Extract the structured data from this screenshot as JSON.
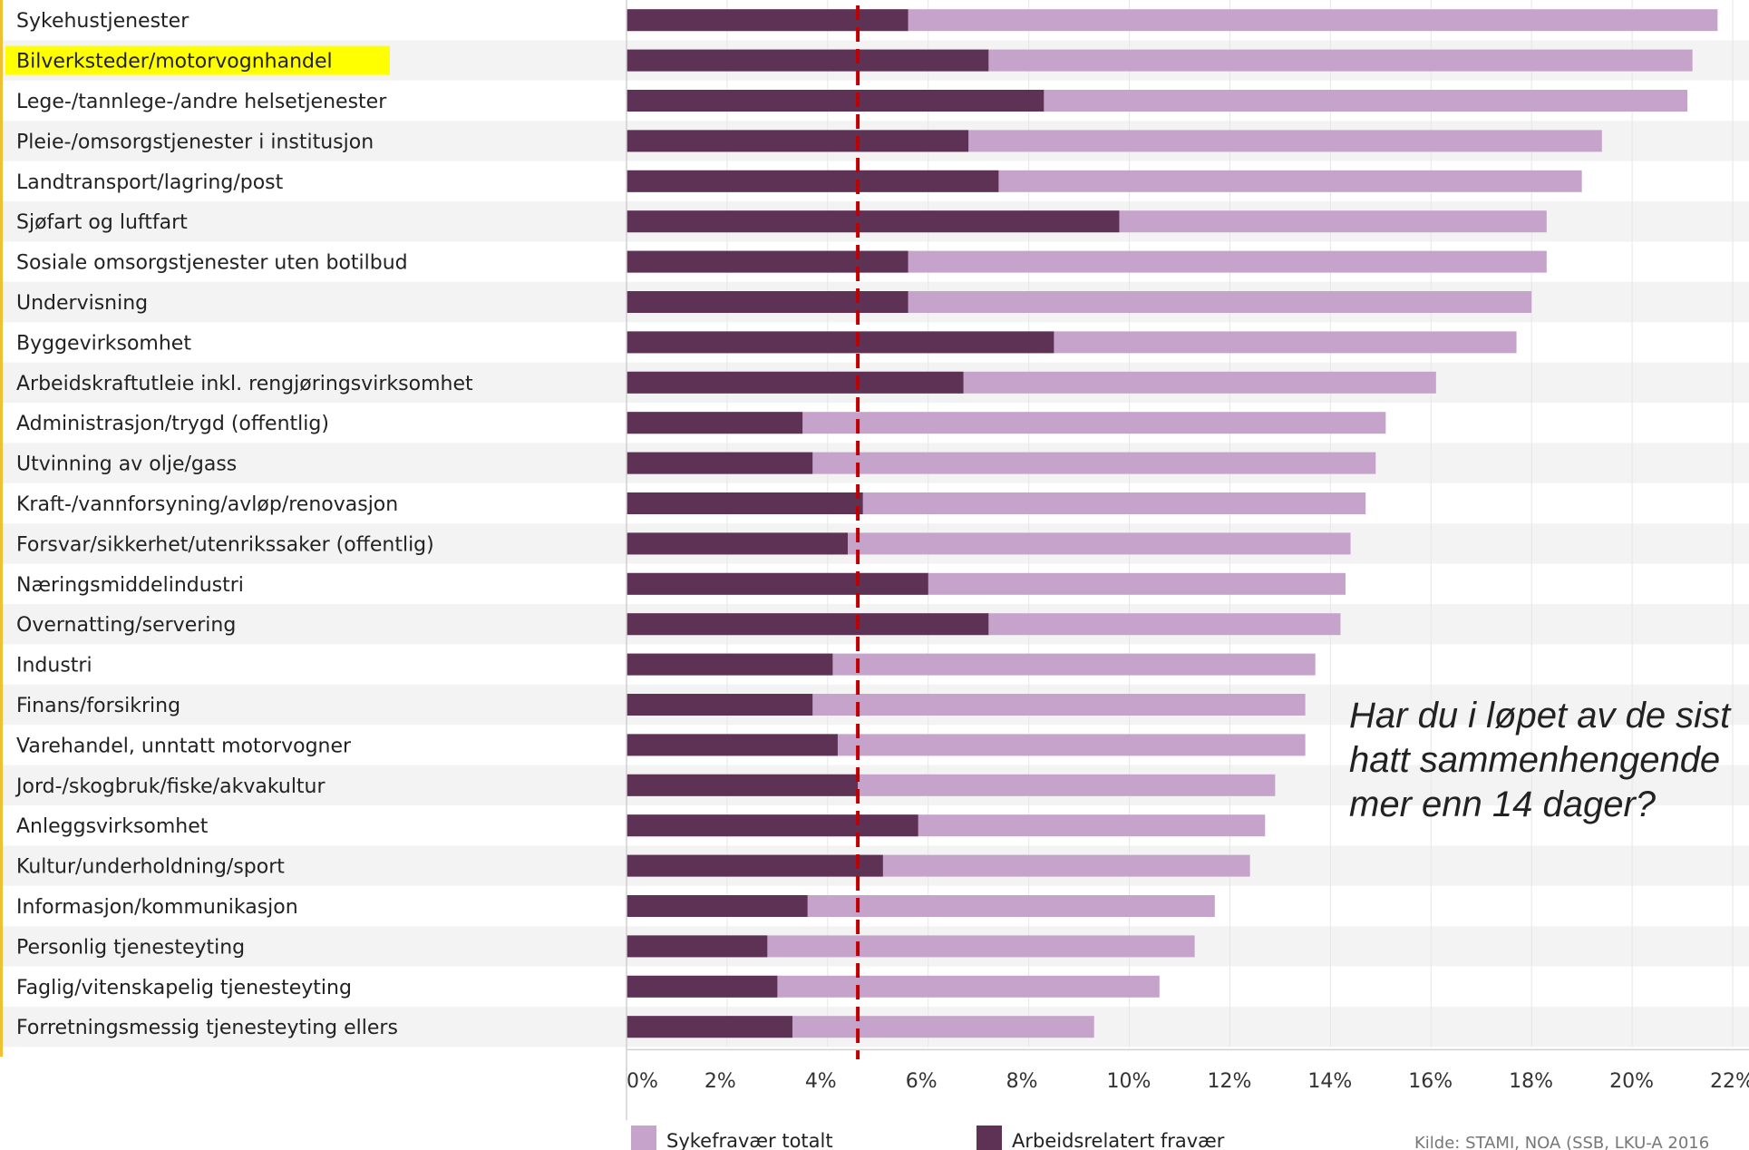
{
  "chart_data": {
    "type": "bar",
    "orientation": "horizontal",
    "stacking": "overlay",
    "categories": [
      "Sykehustjenester",
      "Bilverksteder/motorvognhandel",
      "Lege-/tannlege-/andre helsetjenester",
      "Pleie-/omsorgstjenester i institusjon",
      "Landtransport/lagring/post",
      "Sjøfart og luftfart",
      "Sosiale omsorgstjenester uten botilbud",
      "Undervisning",
      "Byggevirksomhet",
      "Arbeidskraftutleie inkl. rengjøringsvirksomhet",
      "Administrasjon/trygd (offentlig)",
      "Utvinning av olje/gass",
      "Kraft-/vannforsyning/avløp/renovasjon",
      "Forsvar/sikkerhet/utenrikssaker (offentlig)",
      "Næringsmiddelindustri",
      "Overnatting/servering",
      "Industri",
      "Finans/forsikring",
      "Varehandel, unntatt motorvogner",
      "Jord-/skogbruk/fiske/akvakultur",
      "Anleggsvirksomhet",
      "Kultur/underholdning/sport",
      "Informasjon/kommunikasjon",
      "Personlig tjenesteyting",
      "Faglig/vitenskapelig tjenesteyting",
      "Forretningsmessig tjenesteyting ellers"
    ],
    "highlighted_category": "Bilverksteder/motorvognhandel",
    "highlight_color": "#ffff00",
    "series": [
      {
        "name": "Sykefravær totalt",
        "color": "#c5a3cb",
        "values": [
          21.7,
          21.2,
          21.1,
          19.4,
          19.0,
          18.3,
          18.3,
          18.0,
          17.7,
          16.1,
          15.1,
          14.9,
          14.7,
          14.4,
          14.3,
          14.2,
          13.7,
          13.5,
          13.5,
          12.9,
          12.7,
          12.4,
          11.7,
          11.3,
          10.6,
          9.3
        ]
      },
      {
        "name": "Arbeidsrelatert fravær",
        "color": "#5e3254",
        "values": [
          5.6,
          7.2,
          8.3,
          6.8,
          7.4,
          9.8,
          5.6,
          5.6,
          8.5,
          6.7,
          3.5,
          3.7,
          4.7,
          4.4,
          6.0,
          7.2,
          4.1,
          3.7,
          4.2,
          4.6,
          5.8,
          5.1,
          3.6,
          2.8,
          3.0,
          3.3
        ]
      }
    ],
    "reference_line": {
      "value": 4.6,
      "color": "#c00000",
      "style": "dashed"
    },
    "xlim": [
      0,
      22
    ],
    "xticks": [
      "0%",
      "2%",
      "4%",
      "6%",
      "8%",
      "10%",
      "12%",
      "14%",
      "16%",
      "18%",
      "20%",
      "22%"
    ],
    "xtick_values": [
      0,
      2,
      4,
      6,
      8,
      10,
      12,
      14,
      16,
      18,
      20,
      22
    ],
    "grid": true,
    "legend_position": "bottom-left",
    "title": "",
    "xlabel": "",
    "ylabel": ""
  },
  "annotation": {
    "lines": [
      "Har du i løpet av de sist",
      "hatt sammenhengende",
      "mer enn 14 dager?"
    ]
  },
  "source_note": "Kilde: STAMI, NOA (SSB, LKU-A 2016"
}
